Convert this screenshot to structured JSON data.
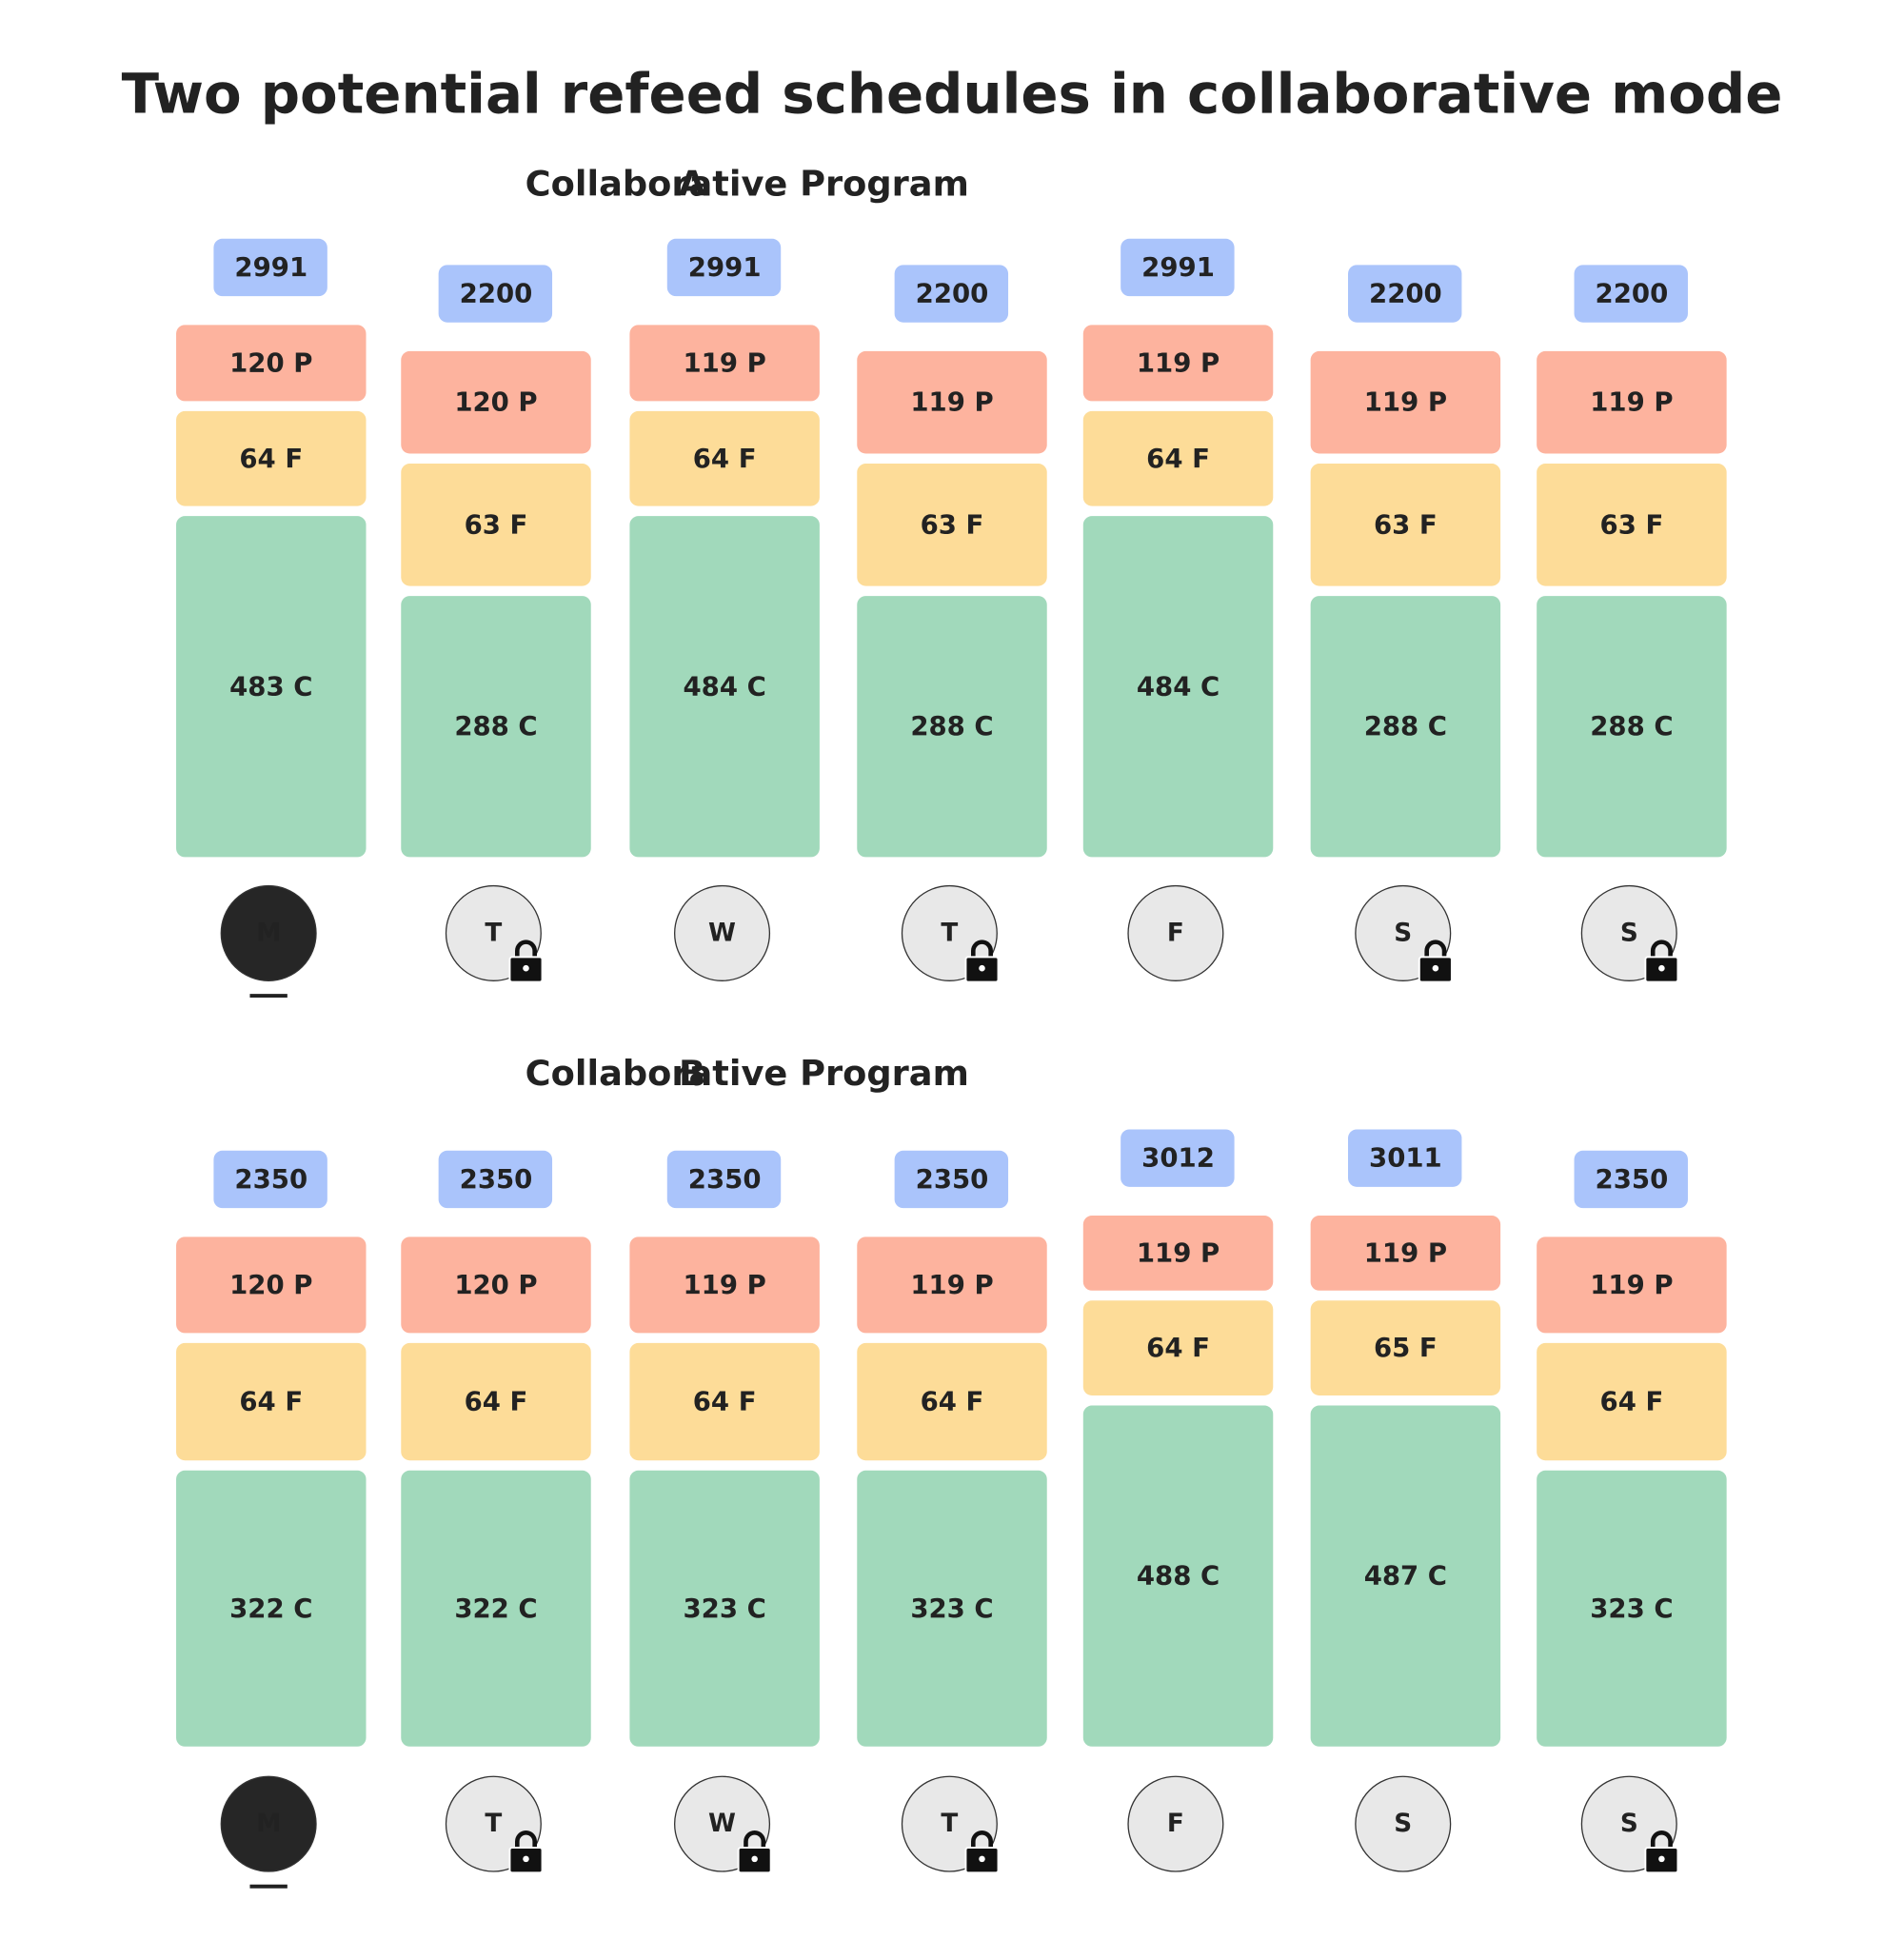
{
  "title": "Two potential refeed schedules in collaborative mode",
  "panels": [
    {
      "letter": "A",
      "name": "Collaborative Program",
      "days": [
        {
          "total": "2991",
          "protein": "120 P",
          "fat": "64 F",
          "carbs": "483 C",
          "day": "M",
          "selected": true,
          "locked": false
        },
        {
          "total": "2200",
          "protein": "120 P",
          "fat": "63 F",
          "carbs": "288 C",
          "day": "T",
          "selected": false,
          "locked": true
        },
        {
          "total": "2991",
          "protein": "119 P",
          "fat": "64 F",
          "carbs": "484 C",
          "day": "W",
          "selected": false,
          "locked": false
        },
        {
          "total": "2200",
          "protein": "119 P",
          "fat": "63 F",
          "carbs": "288 C",
          "day": "T",
          "selected": false,
          "locked": true
        },
        {
          "total": "2991",
          "protein": "119 P",
          "fat": "64 F",
          "carbs": "484 C",
          "day": "F",
          "selected": false,
          "locked": false
        },
        {
          "total": "2200",
          "protein": "119 P",
          "fat": "63 F",
          "carbs": "288 C",
          "day": "S",
          "selected": false,
          "locked": true
        },
        {
          "total": "2200",
          "protein": "119 P",
          "fat": "63 F",
          "carbs": "288 C",
          "day": "S",
          "selected": false,
          "locked": true
        }
      ]
    },
    {
      "letter": "B",
      "name": "Collaborative Program",
      "days": [
        {
          "total": "2350",
          "protein": "120 P",
          "fat": "64 F",
          "carbs": "322 C",
          "day": "M",
          "selected": true,
          "locked": false
        },
        {
          "total": "2350",
          "protein": "120 P",
          "fat": "64 F",
          "carbs": "322 C",
          "day": "T",
          "selected": false,
          "locked": true
        },
        {
          "total": "2350",
          "protein": "119 P",
          "fat": "64 F",
          "carbs": "323 C",
          "day": "W",
          "selected": false,
          "locked": true
        },
        {
          "total": "2350",
          "protein": "119 P",
          "fat": "64 F",
          "carbs": "323 C",
          "day": "T",
          "selected": false,
          "locked": true
        },
        {
          "total": "3012",
          "protein": "119 P",
          "fat": "64 F",
          "carbs": "488 C",
          "day": "F",
          "selected": false,
          "locked": false
        },
        {
          "total": "3011",
          "protein": "119 P",
          "fat": "65 F",
          "carbs": "487 C",
          "day": "S",
          "selected": false,
          "locked": false
        },
        {
          "total": "2350",
          "protein": "119 P",
          "fat": "64 F",
          "carbs": "323 C",
          "day": "S",
          "selected": false,
          "locked": true
        }
      ]
    }
  ]
}
